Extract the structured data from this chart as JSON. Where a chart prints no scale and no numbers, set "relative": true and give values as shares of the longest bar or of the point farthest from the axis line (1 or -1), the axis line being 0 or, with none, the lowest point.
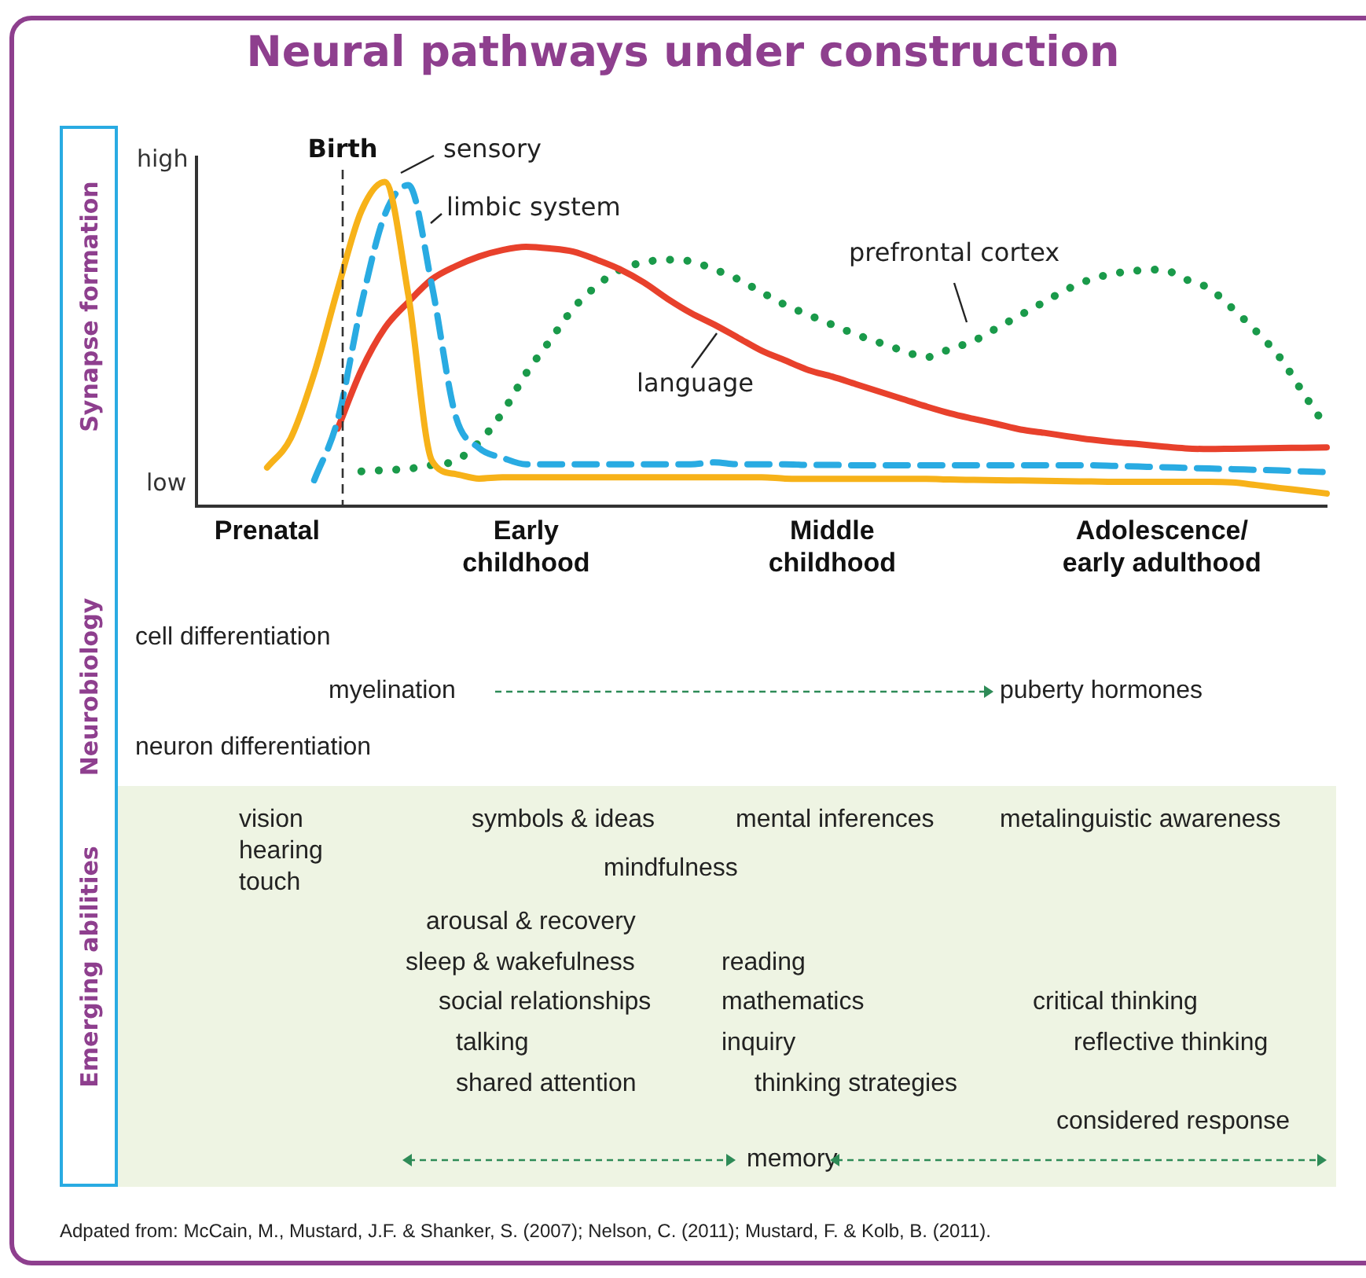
{
  "chart_data": [
    {
      "type": "line",
      "title": "Neural pathways under construction",
      "ylabel": "Synapse formation",
      "relative": true,
      "marker": "none",
      "legend": false,
      "grid": false,
      "categories": [
        null,
        null,
        null,
        "Prenatal",
        null,
        null,
        null,
        null,
        null,
        null,
        null,
        null,
        null,
        null,
        "Early childhood",
        null,
        null,
        null,
        null,
        null,
        null,
        null,
        null,
        null,
        null,
        null,
        null,
        "Middle childhood",
        null,
        null,
        null,
        null,
        null,
        null,
        null,
        null,
        null,
        null,
        null,
        null,
        null,
        "Adolescence/ early adulthood",
        null,
        null,
        null,
        null,
        null,
        null,
        null
      ],
      "annotations": [
        "high",
        "low",
        "Birth"
      ],
      "series": [
        {
          "name": "sensory",
          "color": "#f7b219",
          "line_style": "solid",
          "values": [
            null,
            null,
            null,
            0.12,
            0.21,
            0.41,
            0.67,
            0.91,
            1,
            0.65,
            0.141,
            0.1,
            0.086,
            0.09,
            0.09,
            0.09,
            0.09,
            0.09,
            0.09,
            0.09,
            0.09,
            0.09,
            0.09,
            0.09,
            0.09,
            0.086,
            0.085,
            0.085,
            0.085,
            0.085,
            0.085,
            0.085,
            0.083,
            0.082,
            0.081,
            0.08,
            0.079,
            0.078,
            0.077,
            0.076,
            0.076,
            0.076,
            0.076,
            0.076,
            0.074,
            0.066,
            0.057,
            0.049,
            0.04
          ]
        },
        {
          "name": "limbic system",
          "color": "#29abe2",
          "line_style": "dashed",
          "values": [
            null,
            null,
            null,
            null,
            null,
            0.081,
            0.268,
            0.621,
            0.899,
            0.99,
            0.68,
            0.28,
            0.18,
            0.15,
            0.13,
            0.13,
            0.13,
            0.13,
            0.13,
            0.13,
            0.13,
            0.13,
            0.136,
            0.13,
            0.13,
            0.13,
            0.128,
            0.128,
            0.127,
            0.127,
            0.127,
            0.127,
            0.127,
            0.127,
            0.127,
            0.127,
            0.127,
            0.127,
            0.127,
            0.125,
            0.123,
            0.121,
            0.119,
            0.117,
            0.115,
            0.113,
            0.111,
            0.108,
            0.106
          ]
        },
        {
          "name": "language",
          "color": "#e8412c",
          "line_style": "solid",
          "values": [
            null,
            null,
            null,
            null,
            null,
            null,
            0.24,
            0.42,
            0.55,
            0.63,
            0.7,
            0.74,
            0.77,
            0.79,
            0.8,
            0.795,
            0.785,
            0.76,
            0.73,
            0.69,
            0.64,
            0.596,
            0.56,
            0.52,
            0.48,
            0.45,
            0.42,
            0.4,
            0.377,
            0.354,
            0.331,
            0.308,
            0.287,
            0.27,
            0.254,
            0.237,
            0.227,
            0.216,
            0.206,
            0.198,
            0.192,
            0.185,
            0.179,
            0.177,
            0.178,
            0.179,
            0.18,
            0.181,
            0.182
          ]
        },
        {
          "name": "prefrontal cortex",
          "color": "#1a9a4a",
          "line_style": "dotted",
          "values": [
            null,
            null,
            null,
            null,
            null,
            null,
            null,
            0.108,
            0.112,
            0.116,
            0.128,
            0.141,
            0.198,
            0.29,
            0.41,
            0.51,
            0.61,
            0.68,
            0.73,
            0.752,
            0.76,
            0.755,
            0.73,
            0.7,
            0.66,
            0.621,
            0.59,
            0.56,
            0.53,
            0.505,
            0.48,
            0.46,
            0.485,
            0.51,
            0.55,
            0.59,
            0.63,
            0.67,
            0.7,
            0.718,
            0.727,
            0.73,
            0.7,
            0.672,
            0.61,
            0.54,
            0.46,
            0.35,
            0.242
          ]
        }
      ]
    },
    {
      "type": "other",
      "title": "Neurobiology",
      "annotations": [
        "cell differentiation",
        "myelination",
        "puberty hormones",
        "neuron differentiation"
      ]
    },
    {
      "type": "other",
      "title": "Emerging abilities",
      "annotations": [
        "vision",
        "hearing",
        "touch",
        "symbols & ideas",
        "mental inferences",
        "metalinguistic awareness",
        "mindfulness",
        "arousal & recovery",
        "sleep & wakefulness",
        "reading",
        "social relationships",
        "mathematics",
        "critical thinking",
        "talking",
        "inquiry",
        "reflective thinking",
        "shared attention",
        "thinking strategies",
        "considered response",
        "memory",
        "Adpated from: McCain, M., Mustard, J.F. & Shanker, S. (2007); Nelson, C. (2011); Mustard, F. & Kolb, B. (2011)."
      ]
    }
  ]
}
